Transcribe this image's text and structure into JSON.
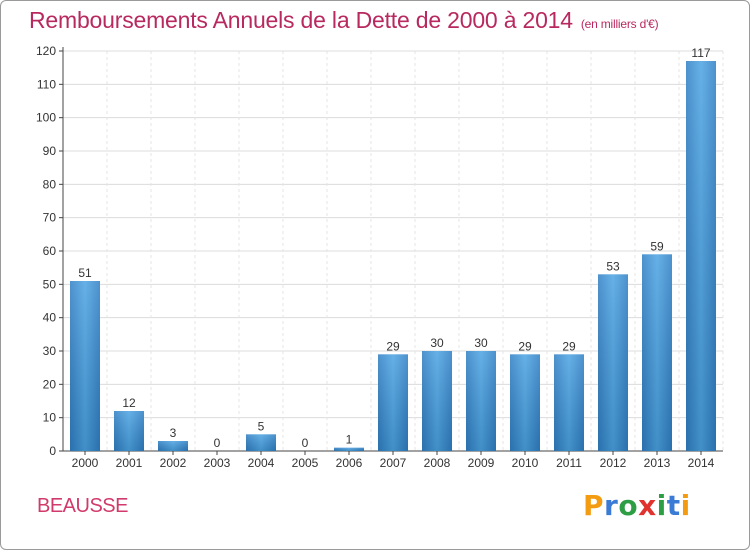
{
  "title": "Remboursements Annuels de la Dette de 2000 à 2014",
  "subtitle": "(en milliers d'€)",
  "commune": "BEAUSSE",
  "logo": {
    "letters": [
      "P",
      "r",
      "o",
      "x",
      "i",
      "t",
      "i"
    ],
    "colors": [
      "#f39c12",
      "#3a7bd5",
      "#2e9e44",
      "#e0322f",
      "#2e9e44",
      "#3a7bd5",
      "#f39c12"
    ]
  },
  "colors": {
    "title": "#b8295f",
    "bar": "#3f97da",
    "bar_light": "#6bb6ec",
    "grid": "#dcdcdc"
  },
  "chart_data": {
    "type": "bar",
    "title": "Remboursements Annuels de la Dette de 2000 à 2014",
    "subtitle": "(en milliers d'€)",
    "categories": [
      "2000",
      "2001",
      "2002",
      "2003",
      "2004",
      "2005",
      "2006",
      "2007",
      "2008",
      "2009",
      "2010",
      "2011",
      "2012",
      "2013",
      "2014"
    ],
    "values": [
      51,
      12,
      3,
      0,
      5,
      0,
      1,
      29,
      30,
      30,
      29,
      29,
      53,
      59,
      117
    ],
    "ylim": [
      0,
      120
    ],
    "yticks": [
      0,
      10,
      20,
      30,
      40,
      50,
      60,
      70,
      80,
      90,
      100,
      110,
      120
    ],
    "grid": true
  }
}
